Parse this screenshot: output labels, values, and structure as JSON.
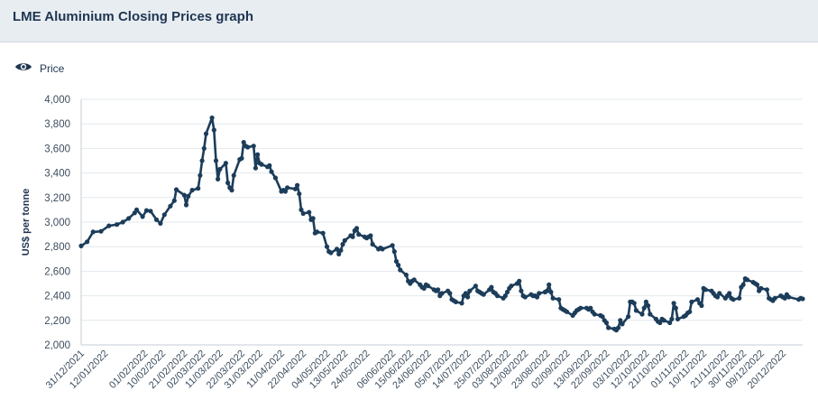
{
  "header": {
    "title": "LME Aluminium Closing Prices graph"
  },
  "legend": {
    "series_label": "Price",
    "icon": "eye-icon"
  },
  "colors": {
    "series": "#1c3d5a",
    "grid": "#e3e8ed",
    "header_bg": "#e8edf2"
  },
  "chart_data": {
    "type": "line",
    "title": "LME Aluminium Closing Prices graph",
    "xlabel": "",
    "ylabel": "US$ per tonne",
    "ylim": [
      2000,
      4000
    ],
    "yticks": [
      2000,
      2200,
      2400,
      2600,
      2800,
      3000,
      3200,
      3400,
      3600,
      3800,
      4000
    ],
    "ytick_labels": [
      "2,000",
      "2,200",
      "2,400",
      "2,600",
      "2,800",
      "3,000",
      "3,200",
      "3,400",
      "3,600",
      "3,800",
      "4,000"
    ],
    "xlim": [
      "2021-12-31",
      "2022-12-30"
    ],
    "xtick_labels": [
      "31/12/2021",
      "12/01/2022",
      "01/02/2022",
      "10/02/2022",
      "21/02/2022",
      "02/03/2022",
      "11/03/2022",
      "22/03/2022",
      "31/03/2022",
      "11/04/2022",
      "22/04/2022",
      "04/05/2022",
      "13/05/2022",
      "24/05/2022",
      "06/06/2022",
      "15/06/2022",
      "24/06/2022",
      "05/07/2022",
      "14/07/2022",
      "25/07/2022",
      "03/08/2022",
      "12/08/2022",
      "23/08/2022",
      "02/09/2022",
      "13/09/2022",
      "22/09/2022",
      "03/10/2022",
      "12/10/2022",
      "21/10/2022",
      "01/11/2022",
      "10/11/2022",
      "21/11/2022",
      "30/11/2022",
      "09/12/2022",
      "20/12/2022"
    ],
    "grid": true,
    "legend": "top-left",
    "series": [
      {
        "name": "Price",
        "points": [
          [
            "2021-12-31",
            2806
          ],
          [
            "2022-01-03",
            2840
          ],
          [
            "2022-01-06",
            2920
          ],
          [
            "2022-01-10",
            2925
          ],
          [
            "2022-01-14",
            2970
          ],
          [
            "2022-01-18",
            2980
          ],
          [
            "2022-01-21",
            3000
          ],
          [
            "2022-01-24",
            3030
          ],
          [
            "2022-01-27",
            3075
          ],
          [
            "2022-01-28",
            3100
          ],
          [
            "2022-01-31",
            3045
          ],
          [
            "2022-02-02",
            3095
          ],
          [
            "2022-02-04",
            3090
          ],
          [
            "2022-02-07",
            3020
          ],
          [
            "2022-02-09",
            2990
          ],
          [
            "2022-02-11",
            3060
          ],
          [
            "2022-02-14",
            3130
          ],
          [
            "2022-02-16",
            3175
          ],
          [
            "2022-02-17",
            3265
          ],
          [
            "2022-02-21",
            3220
          ],
          [
            "2022-02-22",
            3140
          ],
          [
            "2022-02-23",
            3210
          ],
          [
            "2022-02-25",
            3260
          ],
          [
            "2022-02-28",
            3275
          ],
          [
            "2022-03-01",
            3380
          ],
          [
            "2022-03-02",
            3500
          ],
          [
            "2022-03-03",
            3600
          ],
          [
            "2022-03-04",
            3720
          ],
          [
            "2022-03-07",
            3849
          ],
          [
            "2022-03-08",
            3750
          ],
          [
            "2022-03-09",
            3500
          ],
          [
            "2022-03-10",
            3350
          ],
          [
            "2022-03-11",
            3430
          ],
          [
            "2022-03-14",
            3480
          ],
          [
            "2022-03-15",
            3320
          ],
          [
            "2022-03-16",
            3280
          ],
          [
            "2022-03-17",
            3260
          ],
          [
            "2022-03-18",
            3380
          ],
          [
            "2022-03-21",
            3510
          ],
          [
            "2022-03-22",
            3520
          ],
          [
            "2022-03-23",
            3650
          ],
          [
            "2022-03-24",
            3620
          ],
          [
            "2022-03-25",
            3610
          ],
          [
            "2022-03-28",
            3620
          ],
          [
            "2022-03-29",
            3440
          ],
          [
            "2022-03-30",
            3550
          ],
          [
            "2022-03-31",
            3480
          ],
          [
            "2022-04-01",
            3470
          ],
          [
            "2022-04-04",
            3450
          ],
          [
            "2022-04-05",
            3460
          ],
          [
            "2022-04-06",
            3410
          ],
          [
            "2022-04-08",
            3360
          ],
          [
            "2022-04-11",
            3250
          ],
          [
            "2022-04-12",
            3260
          ],
          [
            "2022-04-13",
            3250
          ],
          [
            "2022-04-14",
            3280
          ],
          [
            "2022-04-18",
            3270
          ],
          [
            "2022-04-19",
            3300
          ],
          [
            "2022-04-20",
            3230
          ],
          [
            "2022-04-21",
            3100
          ],
          [
            "2022-04-22",
            3070
          ],
          [
            "2022-04-25",
            3080
          ],
          [
            "2022-04-26",
            3020
          ],
          [
            "2022-04-27",
            3030
          ],
          [
            "2022-04-28",
            2910
          ],
          [
            "2022-04-29",
            2920
          ],
          [
            "2022-05-02",
            2910
          ],
          [
            "2022-05-04",
            2800
          ],
          [
            "2022-05-05",
            2760
          ],
          [
            "2022-05-06",
            2750
          ],
          [
            "2022-05-09",
            2780
          ],
          [
            "2022-05-10",
            2740
          ],
          [
            "2022-05-11",
            2770
          ],
          [
            "2022-05-12",
            2820
          ],
          [
            "2022-05-13",
            2850
          ],
          [
            "2022-05-16",
            2890
          ],
          [
            "2022-05-17",
            2880
          ],
          [
            "2022-05-18",
            2930
          ],
          [
            "2022-05-19",
            2950
          ],
          [
            "2022-05-20",
            2900
          ],
          [
            "2022-05-23",
            2880
          ],
          [
            "2022-05-24",
            2870
          ],
          [
            "2022-05-25",
            2880
          ],
          [
            "2022-05-26",
            2890
          ],
          [
            "2022-05-27",
            2820
          ],
          [
            "2022-05-30",
            2780
          ],
          [
            "2022-05-31",
            2790
          ],
          [
            "2022-06-01",
            2780
          ],
          [
            "2022-06-06",
            2810
          ],
          [
            "2022-06-07",
            2760
          ],
          [
            "2022-06-08",
            2680
          ],
          [
            "2022-06-09",
            2650
          ],
          [
            "2022-06-10",
            2610
          ],
          [
            "2022-06-13",
            2570
          ],
          [
            "2022-06-14",
            2520
          ],
          [
            "2022-06-15",
            2500
          ],
          [
            "2022-06-16",
            2520
          ],
          [
            "2022-06-17",
            2530
          ],
          [
            "2022-06-20",
            2490
          ],
          [
            "2022-06-21",
            2470
          ],
          [
            "2022-06-22",
            2460
          ],
          [
            "2022-06-23",
            2490
          ],
          [
            "2022-06-24",
            2480
          ],
          [
            "2022-06-27",
            2450
          ],
          [
            "2022-06-28",
            2440
          ],
          [
            "2022-06-29",
            2450
          ],
          [
            "2022-06-30",
            2400
          ],
          [
            "2022-07-01",
            2420
          ],
          [
            "2022-07-04",
            2440
          ],
          [
            "2022-07-05",
            2420
          ],
          [
            "2022-07-06",
            2370
          ],
          [
            "2022-07-07",
            2360
          ],
          [
            "2022-07-08",
            2350
          ],
          [
            "2022-07-11",
            2340
          ],
          [
            "2022-07-12",
            2400
          ],
          [
            "2022-07-13",
            2420
          ],
          [
            "2022-07-14",
            2390
          ],
          [
            "2022-07-15",
            2440
          ],
          [
            "2022-07-18",
            2480
          ],
          [
            "2022-07-19",
            2440
          ],
          [
            "2022-07-20",
            2430
          ],
          [
            "2022-07-21",
            2420
          ],
          [
            "2022-07-22",
            2410
          ],
          [
            "2022-07-25",
            2450
          ],
          [
            "2022-07-26",
            2470
          ],
          [
            "2022-07-27",
            2430
          ],
          [
            "2022-07-28",
            2420
          ],
          [
            "2022-07-29",
            2400
          ],
          [
            "2022-08-01",
            2380
          ],
          [
            "2022-08-02",
            2400
          ],
          [
            "2022-08-03",
            2430
          ],
          [
            "2022-08-04",
            2460
          ],
          [
            "2022-08-05",
            2480
          ],
          [
            "2022-08-08",
            2500
          ],
          [
            "2022-08-09",
            2520
          ],
          [
            "2022-08-10",
            2440
          ],
          [
            "2022-08-11",
            2400
          ],
          [
            "2022-08-12",
            2390
          ],
          [
            "2022-08-15",
            2410
          ],
          [
            "2022-08-16",
            2400
          ],
          [
            "2022-08-17",
            2400
          ],
          [
            "2022-08-18",
            2390
          ],
          [
            "2022-08-19",
            2420
          ],
          [
            "2022-08-22",
            2430
          ],
          [
            "2022-08-23",
            2440
          ],
          [
            "2022-08-24",
            2490
          ],
          [
            "2022-08-25",
            2430
          ],
          [
            "2022-08-26",
            2380
          ],
          [
            "2022-08-29",
            2370
          ],
          [
            "2022-08-30",
            2300
          ],
          [
            "2022-08-31",
            2290
          ],
          [
            "2022-09-01",
            2280
          ],
          [
            "2022-09-02",
            2270
          ],
          [
            "2022-09-05",
            2240
          ],
          [
            "2022-09-06",
            2260
          ],
          [
            "2022-09-07",
            2280
          ],
          [
            "2022-09-08",
            2290
          ],
          [
            "2022-09-09",
            2300
          ],
          [
            "2022-09-12",
            2300
          ],
          [
            "2022-09-13",
            2290
          ],
          [
            "2022-09-14",
            2300
          ],
          [
            "2022-09-15",
            2270
          ],
          [
            "2022-09-16",
            2250
          ],
          [
            "2022-09-19",
            2240
          ],
          [
            "2022-09-20",
            2230
          ],
          [
            "2022-09-21",
            2200
          ],
          [
            "2022-09-22",
            2180
          ],
          [
            "2022-09-23",
            2140
          ],
          [
            "2022-09-26",
            2130
          ],
          [
            "2022-09-27",
            2120
          ],
          [
            "2022-09-28",
            2140
          ],
          [
            "2022-09-29",
            2200
          ],
          [
            "2022-09-30",
            2170
          ],
          [
            "2022-10-03",
            2230
          ],
          [
            "2022-10-04",
            2350
          ],
          [
            "2022-10-05",
            2350
          ],
          [
            "2022-10-06",
            2340
          ],
          [
            "2022-10-07",
            2280
          ],
          [
            "2022-10-10",
            2250
          ],
          [
            "2022-10-11",
            2300
          ],
          [
            "2022-10-12",
            2350
          ],
          [
            "2022-10-13",
            2320
          ],
          [
            "2022-10-14",
            2250
          ],
          [
            "2022-10-17",
            2210
          ],
          [
            "2022-10-18",
            2190
          ],
          [
            "2022-10-19",
            2180
          ],
          [
            "2022-10-20",
            2210
          ],
          [
            "2022-10-21",
            2200
          ],
          [
            "2022-10-24",
            2180
          ],
          [
            "2022-10-25",
            2210
          ],
          [
            "2022-10-26",
            2340
          ],
          [
            "2022-10-27",
            2300
          ],
          [
            "2022-10-28",
            2210
          ],
          [
            "2022-10-31",
            2230
          ],
          [
            "2022-11-01",
            2240
          ],
          [
            "2022-11-02",
            2260
          ],
          [
            "2022-11-03",
            2270
          ],
          [
            "2022-11-04",
            2350
          ],
          [
            "2022-11-07",
            2370
          ],
          [
            "2022-11-08",
            2340
          ],
          [
            "2022-11-09",
            2320
          ],
          [
            "2022-11-10",
            2460
          ],
          [
            "2022-11-11",
            2450
          ],
          [
            "2022-11-14",
            2440
          ],
          [
            "2022-11-15",
            2420
          ],
          [
            "2022-11-16",
            2400
          ],
          [
            "2022-11-17",
            2390
          ],
          [
            "2022-11-18",
            2420
          ],
          [
            "2022-11-21",
            2380
          ],
          [
            "2022-11-22",
            2400
          ],
          [
            "2022-11-23",
            2420
          ],
          [
            "2022-11-24",
            2380
          ],
          [
            "2022-11-25",
            2370
          ],
          [
            "2022-11-28",
            2380
          ],
          [
            "2022-11-29",
            2470
          ],
          [
            "2022-11-30",
            2490
          ],
          [
            "2022-12-01",
            2540
          ],
          [
            "2022-12-02",
            2530
          ],
          [
            "2022-12-05",
            2510
          ],
          [
            "2022-12-06",
            2500
          ],
          [
            "2022-12-07",
            2490
          ],
          [
            "2022-12-08",
            2440
          ],
          [
            "2022-12-09",
            2460
          ],
          [
            "2022-12-12",
            2450
          ],
          [
            "2022-12-13",
            2380
          ],
          [
            "2022-12-14",
            2370
          ],
          [
            "2022-12-15",
            2360
          ],
          [
            "2022-12-16",
            2380
          ],
          [
            "2022-12-19",
            2400
          ],
          [
            "2022-12-20",
            2390
          ],
          [
            "2022-12-21",
            2380
          ],
          [
            "2022-12-22",
            2410
          ],
          [
            "2022-12-23",
            2390
          ],
          [
            "2022-12-28",
            2370
          ],
          [
            "2022-12-29",
            2380
          ],
          [
            "2022-12-30",
            2375
          ]
        ]
      }
    ]
  }
}
